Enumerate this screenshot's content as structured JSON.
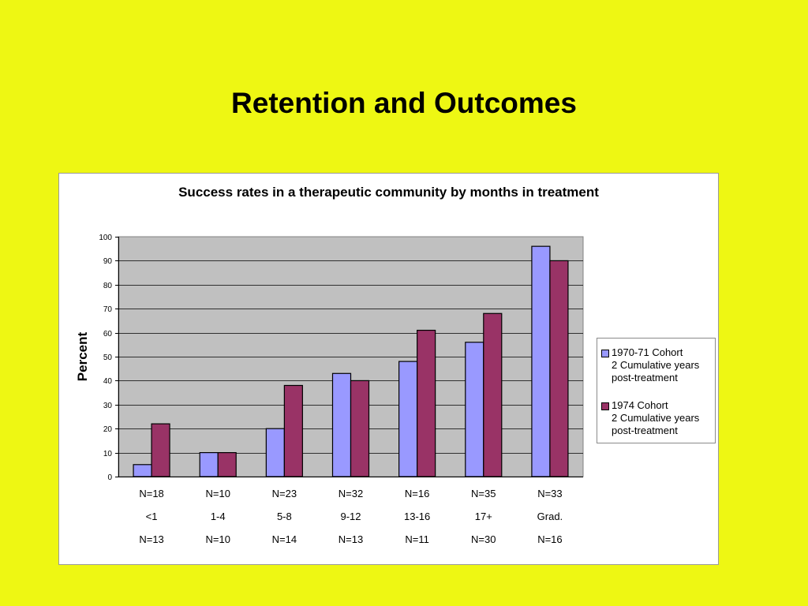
{
  "slide": {
    "title": "Retention and Outcomes"
  },
  "colors": {
    "background": "#eef713",
    "series1": "#9999ff",
    "series2": "#993366",
    "plot_area": "#c0c0c0"
  },
  "chart_data": {
    "type": "bar",
    "title": "Success rates in a therapeutic community by months in treatment",
    "ylabel": "Percent",
    "xlabel": "",
    "ylim": [
      0,
      100
    ],
    "yticks": [
      0,
      10,
      20,
      30,
      40,
      50,
      60,
      70,
      80,
      90,
      100
    ],
    "categories": [
      "<1",
      "1-4",
      "5-8",
      "9-12",
      "13-16",
      "17+",
      "Grad."
    ],
    "n_1970": [
      "N=18",
      "N=10",
      "N=23",
      "N=32",
      "N=16",
      "N=35",
      "N=33"
    ],
    "n_1974": [
      "N=13",
      "N=10",
      "N=14",
      "N=13",
      "N=11",
      "N=30",
      "N=16"
    ],
    "series": [
      {
        "name": "1970-71 Cohort\n2 Cumulative years\npost-treatment",
        "color": "#9999ff",
        "values": [
          5,
          10,
          20,
          43,
          48,
          56,
          96
        ]
      },
      {
        "name": "1974 Cohort\n2 Cumulative years\npost-treatment",
        "color": "#993366",
        "values": [
          22,
          10,
          38,
          40,
          61,
          68,
          90
        ]
      }
    ],
    "grid": true,
    "legend_position": "right"
  }
}
